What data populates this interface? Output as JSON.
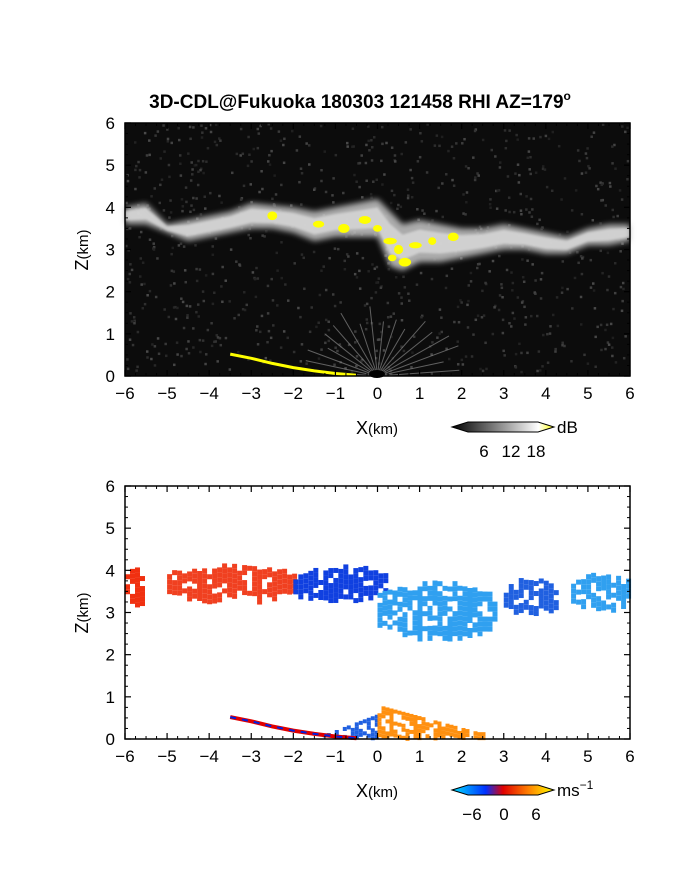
{
  "title": "3D-CDL@Fukuoka 180303 121458 RHI AZ=179",
  "title_sup": "o",
  "chart_data": [
    {
      "type": "heatmap",
      "panel": "reflectivity",
      "xlabel_main": "X",
      "xlabel_unit": "(km)",
      "ylabel_main": "Z",
      "ylabel_unit": "(km)",
      "xlim": [
        -6,
        6
      ],
      "ylim": [
        0,
        6
      ],
      "xticks": [
        "−6",
        "−5",
        "−4",
        "−3",
        "−2",
        "−1",
        "0",
        "1",
        "2",
        "3",
        "4",
        "5",
        "6"
      ],
      "yticks": [
        "0",
        "1",
        "2",
        "3",
        "4",
        "5",
        "6"
      ],
      "background": "#0c0c0c",
      "colorbar": {
        "unit": "dB",
        "ticks": [
          "6",
          "12",
          "18"
        ],
        "colors": [
          "#000000",
          "#ffffff",
          "#ffff00"
        ]
      },
      "cloud_layer": {
        "x": [
          -6.0,
          -5.5,
          -5.0,
          -4.5,
          -4.0,
          -3.5,
          -3.0,
          -2.5,
          -2.0,
          -1.5,
          -1.0,
          -0.5,
          0.0,
          0.3,
          0.6,
          1.0,
          1.5,
          2.0,
          2.5,
          3.0,
          3.5,
          4.0,
          4.5,
          5.0,
          5.5,
          6.0
        ],
        "top": [
          4.0,
          4.1,
          3.6,
          3.7,
          3.8,
          3.9,
          4.1,
          4.05,
          4.0,
          3.9,
          4.0,
          4.1,
          4.2,
          3.9,
          3.6,
          3.7,
          3.6,
          3.5,
          3.5,
          3.6,
          3.5,
          3.4,
          3.3,
          3.5,
          3.6,
          3.6
        ],
        "bottom": [
          3.6,
          3.6,
          3.4,
          3.2,
          3.3,
          3.4,
          3.5,
          3.5,
          3.4,
          3.2,
          3.3,
          3.3,
          3.3,
          2.6,
          2.5,
          2.7,
          2.7,
          2.8,
          2.9,
          3.0,
          3.0,
          2.9,
          2.9,
          3.1,
          3.1,
          3.2
        ]
      },
      "ground_echo": {
        "x": [
          -3.5,
          -3.0,
          -2.5,
          -2.0,
          -1.5,
          -1.0,
          -0.5
        ],
        "z": [
          0.52,
          0.42,
          0.3,
          0.2,
          0.12,
          0.06,
          0.02
        ]
      },
      "strong_echo": {
        "x": [
          -2.5,
          -1.4,
          -0.8,
          -0.3,
          0.0,
          0.3,
          0.35,
          0.5,
          0.65,
          0.9,
          1.3,
          1.8
        ],
        "z": [
          3.8,
          3.6,
          3.5,
          3.7,
          3.5,
          3.2,
          2.8,
          3.0,
          2.7,
          3.1,
          3.2,
          3.3
        ]
      }
    },
    {
      "type": "heatmap",
      "panel": "doppler_velocity",
      "xlabel_main": "X",
      "xlabel_unit": "(km)",
      "ylabel_main": "Z",
      "ylabel_unit": "(km)",
      "xlim": [
        -6,
        6
      ],
      "ylim": [
        0,
        6
      ],
      "xticks": [
        "−6",
        "−5",
        "−4",
        "−3",
        "−2",
        "−1",
        "0",
        "1",
        "2",
        "3",
        "4",
        "5",
        "6"
      ],
      "yticks": [
        "0",
        "1",
        "2",
        "3",
        "4",
        "5",
        "6"
      ],
      "background": "#ffffff",
      "colorbar": {
        "unit_main": "ms",
        "unit_sup": "−1",
        "ticks": [
          "−6",
          "0",
          "6"
        ],
        "colors": [
          "#00e0ff",
          "#0030ff",
          "#e00000",
          "#ff8000",
          "#ffff00"
        ]
      },
      "cloud_segments": [
        {
          "x": [
            -6.0,
            -5.6
          ],
          "top": 4.05,
          "bottom": 3.2,
          "color": "#f03010"
        },
        {
          "x": [
            -5.0,
            -2.0
          ],
          "top": 4.1,
          "bottom": 3.3,
          "color": "#f04020"
        },
        {
          "x": [
            -2.0,
            0.2
          ],
          "top": 4.1,
          "bottom": 3.3,
          "color": "#1040e0"
        },
        {
          "x": [
            0.0,
            2.8
          ],
          "top": 3.7,
          "bottom": 2.4,
          "color": "#30a0f0"
        },
        {
          "x": [
            3.0,
            4.3
          ],
          "top": 3.8,
          "bottom": 3.0,
          "color": "#2060e0"
        },
        {
          "x": [
            4.6,
            6.0
          ],
          "top": 3.9,
          "bottom": 3.1,
          "color": "#30a0f0"
        }
      ],
      "ground_echo": {
        "x": [
          -3.5,
          -3.0,
          -2.5,
          -2.0,
          -1.5,
          -1.0,
          -0.5
        ],
        "z": [
          0.52,
          0.42,
          0.3,
          0.2,
          0.12,
          0.06,
          0.02
        ]
      },
      "near_ground": [
        {
          "x": [
            -1.3,
            0.0
          ],
          "top": 0.6,
          "bottom": 0.05,
          "color": "#2060e0"
        },
        {
          "x": [
            0.0,
            2.5
          ],
          "top": 0.8,
          "bottom": 0.05,
          "color": "#ff9010"
        }
      ]
    }
  ]
}
